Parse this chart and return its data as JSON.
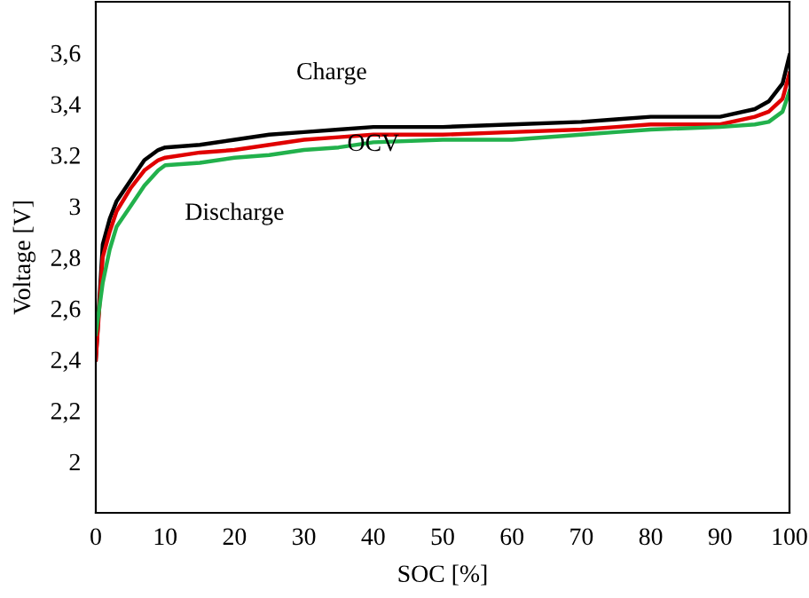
{
  "chart_data": {
    "type": "line",
    "xlabel": "SOC [%]",
    "ylabel": "Voltage [V]",
    "xlim": [
      0,
      100
    ],
    "ylim": [
      1.8,
      3.8
    ],
    "xticks": [
      0,
      10,
      20,
      30,
      40,
      50,
      60,
      70,
      80,
      90,
      100
    ],
    "yticks": [
      2,
      {
        "value": 2.2,
        "label": "2,2"
      },
      {
        "value": 2.4,
        "label": "2,4"
      },
      {
        "value": 2.6,
        "label": "2,6"
      },
      {
        "value": 2.8,
        "label": "2,8"
      },
      3,
      {
        "value": 3.2,
        "label": "3.2"
      },
      {
        "value": 3.4,
        "label": "3,4"
      },
      {
        "value": 3.6,
        "label": "3,6"
      }
    ],
    "x": [
      0,
      1,
      2,
      3,
      5,
      7,
      9,
      10,
      15,
      20,
      25,
      30,
      35,
      40,
      50,
      60,
      70,
      75,
      80,
      90,
      95,
      97,
      99,
      100
    ],
    "series": [
      {
        "name": "Charge",
        "color": "#000000",
        "values": [
          2.4,
          2.85,
          2.95,
          3.02,
          3.1,
          3.18,
          3.22,
          3.23,
          3.24,
          3.26,
          3.28,
          3.29,
          3.3,
          3.31,
          3.31,
          3.32,
          3.33,
          3.34,
          3.35,
          3.35,
          3.38,
          3.41,
          3.48,
          3.59
        ]
      },
      {
        "name": "OCV",
        "color": "#e00000",
        "values": [
          2.4,
          2.8,
          2.9,
          2.98,
          3.07,
          3.14,
          3.18,
          3.19,
          3.21,
          3.22,
          3.24,
          3.26,
          3.27,
          3.28,
          3.28,
          3.29,
          3.3,
          3.31,
          3.32,
          3.32,
          3.35,
          3.37,
          3.42,
          3.52
        ]
      },
      {
        "name": "Discharge",
        "color": "#22b14c",
        "values": [
          2.5,
          2.7,
          2.83,
          2.92,
          3.0,
          3.08,
          3.14,
          3.16,
          3.17,
          3.19,
          3.2,
          3.22,
          3.23,
          3.25,
          3.26,
          3.26,
          3.28,
          3.29,
          3.3,
          3.31,
          3.32,
          3.33,
          3.37,
          3.45
        ]
      }
    ],
    "grid": false
  }
}
